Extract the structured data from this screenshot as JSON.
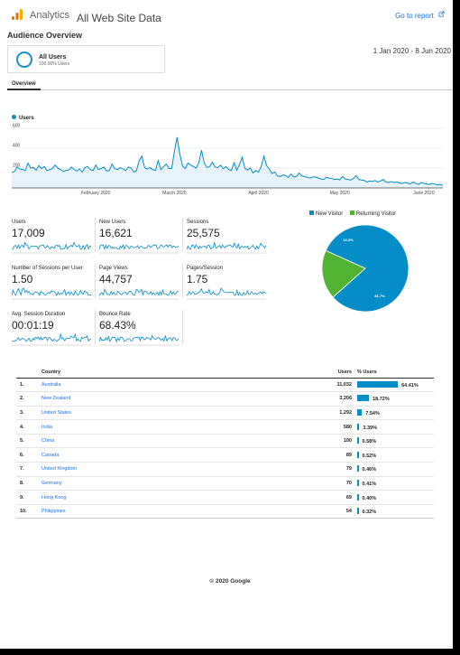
{
  "header": {
    "app_name": "Analytics",
    "property": "All Web Site Data",
    "goto_report": "Go to report",
    "goto_icon": "external-link-icon",
    "logo_colors": [
      "#f9ab00",
      "#e37400",
      "#e37400"
    ]
  },
  "report": {
    "title": "Audience Overview",
    "date_range": "1 Jan 2020 - 8 Jun 2020"
  },
  "segment": {
    "name": "All Users",
    "subtitle": "100.00% Users",
    "color": "#1a8fcf"
  },
  "tabs": [
    {
      "label": "Overview"
    }
  ],
  "chart_data": [
    {
      "type": "line",
      "series": [
        {
          "name": "Users",
          "color": "#058dc7"
        }
      ],
      "legend": "top-left",
      "ylim": [
        0,
        600
      ],
      "yticks": [
        "600",
        "400",
        "200"
      ],
      "xticks": [
        "February 2020",
        "March 2020",
        "April 2020",
        "May 2020",
        "June 2020"
      ],
      "x_start": "2020-01-01",
      "x_end": "2020-06-08",
      "values": [
        155,
        165,
        210,
        190,
        185,
        175,
        250,
        200,
        205,
        180,
        225,
        195,
        215,
        175,
        185,
        195,
        230,
        200,
        185,
        165,
        175,
        180,
        210,
        185,
        170,
        190,
        160,
        205,
        215,
        185,
        175,
        230,
        185,
        195,
        210,
        170,
        175,
        240,
        195,
        185,
        205,
        190,
        175,
        210,
        200,
        160,
        175,
        275,
        320,
        205,
        190,
        205,
        185,
        175,
        275,
        185,
        215,
        240,
        195,
        195,
        370,
        510,
        340,
        220,
        195,
        250,
        230,
        215,
        200,
        255,
        380,
        250,
        205,
        215,
        260,
        210,
        205,
        230,
        195,
        215,
        185,
        175,
        255,
        180,
        235,
        310,
        195,
        180,
        200,
        150,
        175,
        160,
        215,
        320,
        225,
        190,
        145,
        160,
        120,
        115,
        130,
        125,
        105,
        140,
        110,
        115,
        150,
        120,
        115,
        105,
        100,
        110,
        110,
        100,
        90,
        85,
        105,
        100,
        95,
        85,
        90,
        80,
        115,
        90,
        85,
        80,
        95,
        125,
        85,
        80,
        75,
        60,
        70,
        65,
        75,
        60,
        70,
        85,
        60,
        55,
        65,
        55,
        60,
        50,
        45,
        55,
        50,
        40,
        60,
        45,
        35,
        55,
        45,
        40,
        35,
        45,
        40,
        30,
        35,
        25
      ]
    },
    {
      "type": "pie",
      "series": [
        {
          "name": "New Visitor",
          "value": 81.7,
          "color": "#058dc7"
        },
        {
          "name": "Returning Visitor",
          "value": 18.3,
          "color": "#50b432"
        }
      ],
      "labels": [
        "81.7%",
        "18.3%"
      ],
      "legend": "top"
    }
  ],
  "metrics": [
    {
      "label": "Users",
      "value": "17,009"
    },
    {
      "label": "New Users",
      "value": "16,621"
    },
    {
      "label": "Sessions",
      "value": "25,575"
    },
    {
      "label": "Number of Sessions per User",
      "value": "1.50"
    },
    {
      "label": "Page Views",
      "value": "44,757"
    },
    {
      "label": "Pages/Session",
      "value": "1.75"
    },
    {
      "label": "Avg. Session Duration",
      "value": "00:01:19"
    },
    {
      "label": "Bounce Rate",
      "value": "68.43%"
    }
  ],
  "country_table": {
    "headers": {
      "country": "Country",
      "users": "Users",
      "pct": "% Users"
    },
    "rows": [
      {
        "rank": "1.",
        "country": "Australia",
        "users": "11,032",
        "pct": "64.41%",
        "share": 64.41
      },
      {
        "rank": "2.",
        "country": "New Zealand",
        "users": "3,206",
        "pct": "18.72%",
        "share": 18.72
      },
      {
        "rank": "3.",
        "country": "United States",
        "users": "1,292",
        "pct": "7.54%",
        "share": 7.54
      },
      {
        "rank": "4.",
        "country": "India",
        "users": "580",
        "pct": "3.39%",
        "share": 3.39
      },
      {
        "rank": "5.",
        "country": "China",
        "users": "100",
        "pct": "0.58%",
        "share": 0.58
      },
      {
        "rank": "6.",
        "country": "Canada",
        "users": "89",
        "pct": "0.52%",
        "share": 0.52
      },
      {
        "rank": "7.",
        "country": "United Kingdom",
        "users": "79",
        "pct": "0.46%",
        "share": 0.46
      },
      {
        "rank": "8.",
        "country": "Germany",
        "users": "70",
        "pct": "0.41%",
        "share": 0.41
      },
      {
        "rank": "9.",
        "country": "Hong Kong",
        "users": "69",
        "pct": "0.40%",
        "share": 0.4
      },
      {
        "rank": "10.",
        "country": "Philippines",
        "users": "54",
        "pct": "0.32%",
        "share": 0.32
      }
    ]
  },
  "footer": {
    "text": "© 2020 Google"
  }
}
